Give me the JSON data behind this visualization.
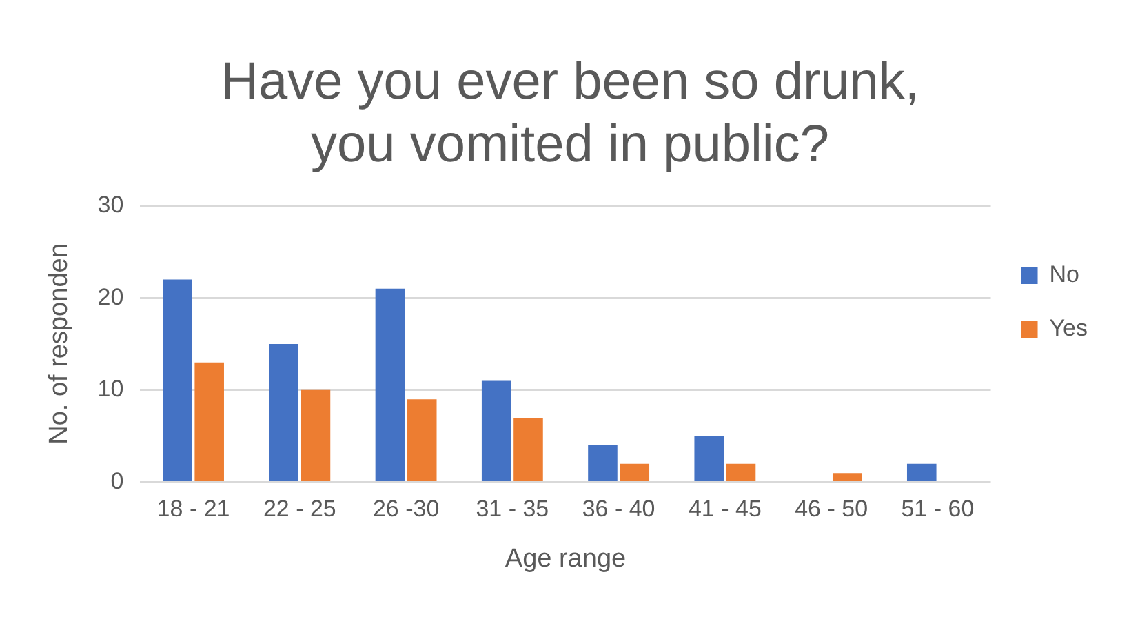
{
  "chart_data": {
    "type": "bar",
    "title": [
      "Have you ever been so drunk,",
      "you vomited in public?"
    ],
    "xlabel": "Age range",
    "ylabel": "No. of responden",
    "categories": [
      "18 - 21",
      "22 - 25",
      "26 -30",
      "31 - 35",
      "36 - 40",
      "41 - 45",
      "46 - 50",
      "51 - 60"
    ],
    "series": [
      {
        "name": "No",
        "color": "#4472c4",
        "values": [
          22,
          15,
          21,
          11,
          4,
          5,
          null,
          2
        ]
      },
      {
        "name": "Yes",
        "color": "#ed7d31",
        "values": [
          13,
          10,
          9,
          7,
          2,
          2,
          1,
          null
        ]
      }
    ],
    "ylim": [
      0,
      30
    ],
    "yticks": [
      0,
      10,
      20,
      30
    ],
    "grid": "y",
    "legend": "right"
  }
}
